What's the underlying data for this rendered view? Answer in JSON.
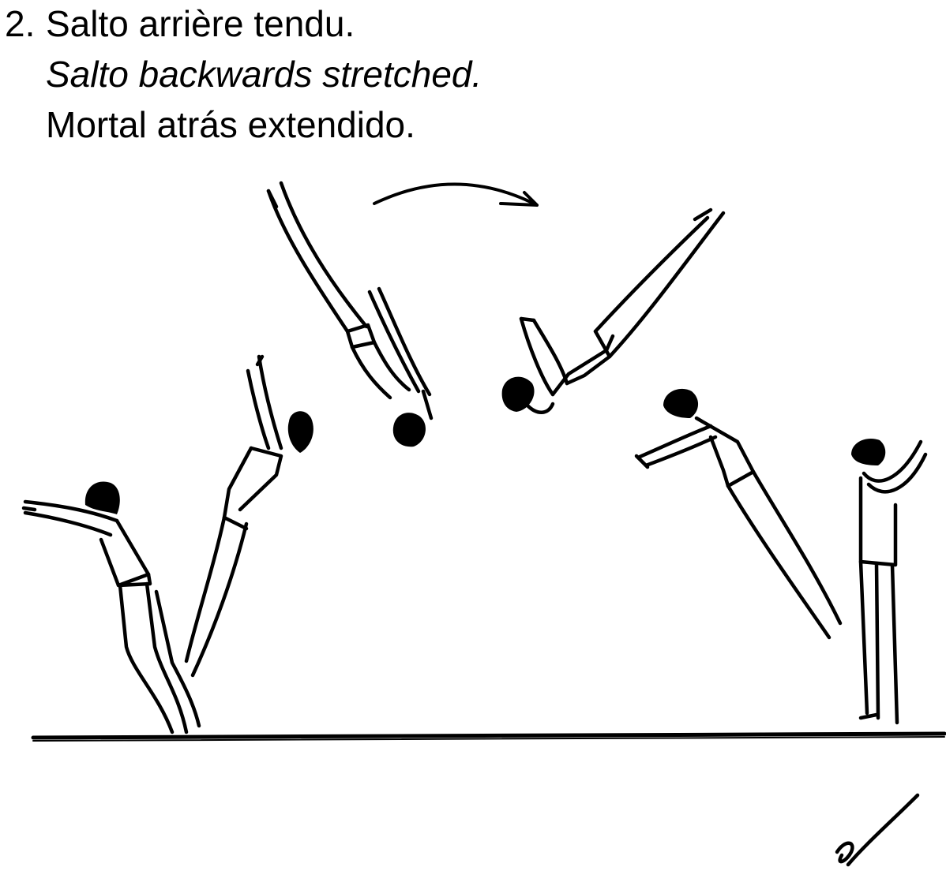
{
  "element": {
    "number": "2.",
    "name_fr": "Salto arrière tendu.",
    "name_en": "Salto backwards stretched.",
    "name_es": "Mortal atrás extendido."
  },
  "colors": {
    "ink": "#000000",
    "background": "#ffffff"
  },
  "illustration": {
    "figures": [
      "takeoff-figure",
      "rising-figure",
      "inverted-figure",
      "rotating-figure",
      "descending-figure",
      "landing-figure"
    ],
    "icons": [
      "rotation-arrow-icon",
      "value-mark-icon"
    ]
  }
}
